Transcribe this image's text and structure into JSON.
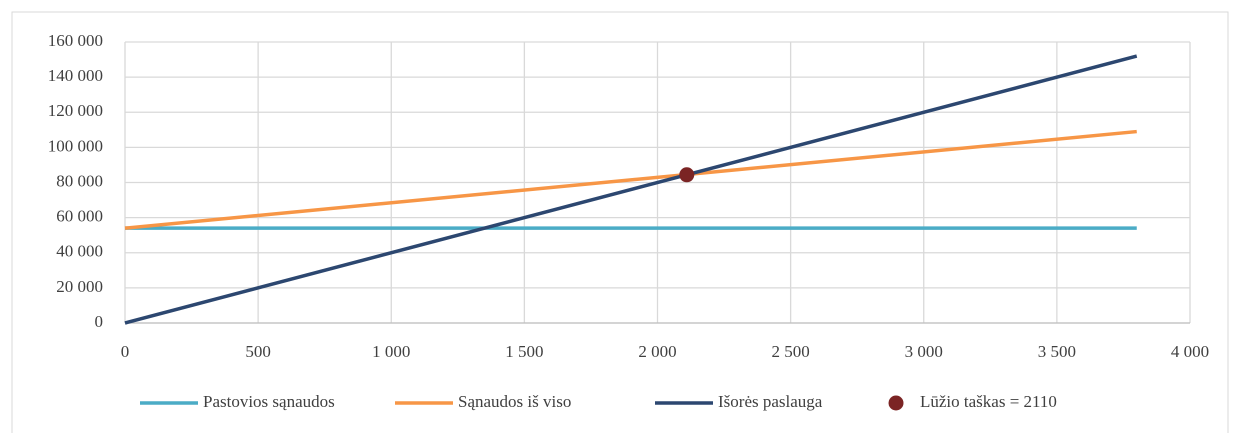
{
  "chart_data": {
    "type": "line",
    "series": [
      {
        "name": "Pastovios sąnaudos",
        "color": "#4bacc6",
        "x": [
          0,
          3800
        ],
        "values": [
          54000,
          54000
        ]
      },
      {
        "name": "Sąnaudos iš viso",
        "color": "#f79646",
        "x": [
          0,
          3800
        ],
        "values": [
          54000,
          109000
        ]
      },
      {
        "name": "Išorės paslauga",
        "color": "#2c4770",
        "x": [
          0,
          3800
        ],
        "values": [
          0,
          152000
        ]
      },
      {
        "name": "Lūžio taškas = 2110",
        "color": "#7b2424",
        "x": [
          2110
        ],
        "values": [
          84400
        ],
        "marker": true
      }
    ],
    "xlim": [
      0,
      4000
    ],
    "xticks": [
      0,
      500,
      {
        "value": 1000,
        "label": "1 000"
      },
      {
        "value": 1500,
        "label": "1 500"
      },
      {
        "value": 2000,
        "label": "2 000"
      },
      {
        "value": 2500,
        "label": "2 500"
      },
      {
        "value": 3000,
        "label": "3 000"
      },
      {
        "value": 3500,
        "label": "3 500"
      },
      {
        "value": 4000,
        "label": "4 000"
      }
    ],
    "ylim": [
      0,
      160000
    ],
    "yticks": [
      0,
      {
        "value": 20000,
        "label": "20 000"
      },
      {
        "value": 40000,
        "label": "40 000"
      },
      {
        "value": 60000,
        "label": "60 000"
      },
      {
        "value": 80000,
        "label": "80 000"
      },
      {
        "value": 100000,
        "label": "100 000"
      },
      {
        "value": 120000,
        "label": "120 000"
      },
      {
        "value": 140000,
        "label": "140 000"
      },
      {
        "value": 160000,
        "label": "160 000"
      }
    ],
    "grid": true,
    "legend": "bottom"
  }
}
